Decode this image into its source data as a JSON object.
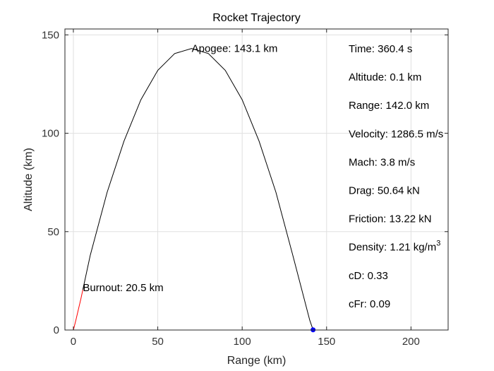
{
  "chart_data": {
    "type": "line",
    "title": "Rocket Trajectory",
    "xlabel": "Range (km)",
    "ylabel": "Altitude (km)",
    "xlim": [
      -5,
      222
    ],
    "ylim": [
      0,
      153
    ],
    "xticks": [
      0,
      50,
      100,
      150,
      200
    ],
    "yticks": [
      0,
      50,
      100,
      150
    ],
    "grid": true,
    "series": [
      {
        "color": "#ff0000",
        "x": [
          0,
          1.5,
          3,
          4.5,
          5.6
        ],
        "y": [
          0,
          5,
          10.5,
          16,
          20.5
        ]
      },
      {
        "color": "#000000",
        "x": [
          5.6,
          10,
          20,
          30,
          40,
          50,
          60,
          70,
          80,
          90,
          100,
          110,
          120,
          130,
          140,
          142
        ],
        "y": [
          20.5,
          38,
          70,
          96,
          117,
          132,
          140.5,
          143.1,
          140.5,
          132,
          117,
          96,
          70,
          38,
          5,
          0.1
        ]
      }
    ],
    "markers": [
      {
        "name": "current-position",
        "x": 142.0,
        "y": 0.1,
        "color": "#0000ff"
      }
    ],
    "annotations": {
      "apogee": {
        "text": "Apogee: 143.1 km",
        "x": 70.5,
        "y": 143.1
      },
      "burnout": {
        "text": "Burnout: 20.5 km",
        "x": 5.6,
        "y": 20.5
      }
    },
    "stats": [
      {
        "key": "time",
        "text": "Time: 360.4 s"
      },
      {
        "key": "altitude",
        "text": "Altitude: 0.1 km"
      },
      {
        "key": "range",
        "text": "Range: 142.0 km"
      },
      {
        "key": "velocity",
        "text": "Velocity: 1286.5 m/s"
      },
      {
        "key": "mach",
        "text": "Mach: 3.8 m/s"
      },
      {
        "key": "drag",
        "text": "Drag: 50.64 kN"
      },
      {
        "key": "friction",
        "text": "Friction: 13.22 kN"
      },
      {
        "key": "density",
        "text": "Density: 1.21 kg/m",
        "sup": "3"
      },
      {
        "key": "cd",
        "text": "cD: 0.33"
      },
      {
        "key": "cfr",
        "text": "cFr: 0.09"
      }
    ]
  }
}
